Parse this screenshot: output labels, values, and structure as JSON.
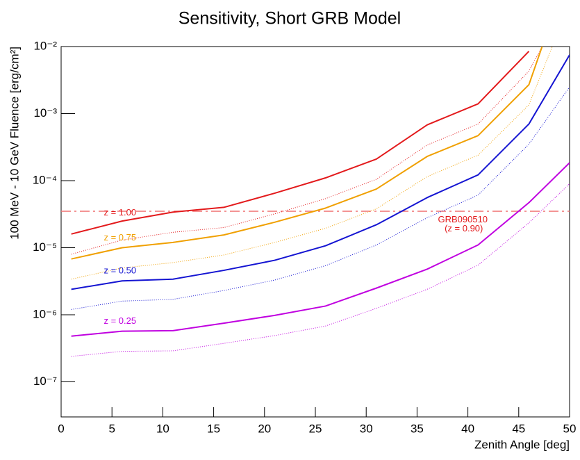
{
  "chart_data": {
    "type": "line",
    "title": "Sensitivity, Short GRB Model",
    "xlabel": "Zenith Angle [deg]",
    "ylabel": "100 MeV - 10 GeV Fluence [erg/cm²]",
    "log_y": true,
    "xlim": [
      0,
      50
    ],
    "xticks": [
      0,
      5,
      10,
      15,
      20,
      25,
      30,
      35,
      40,
      45,
      50
    ],
    "ylim": [
      3e-08,
      0.01
    ],
    "yticks": [
      {
        "value": 1e-07,
        "label": "10⁻⁷"
      },
      {
        "value": 1e-06,
        "label": "10⁻⁶"
      },
      {
        "value": 1e-05,
        "label": "10⁻⁵"
      },
      {
        "value": 0.0001,
        "label": "10⁻⁴"
      },
      {
        "value": 0.001,
        "label": "10⁻³"
      },
      {
        "value": 0.01,
        "label": "10⁻²"
      }
    ],
    "series": [
      {
        "color": "#e31a1c",
        "style": "solid",
        "x": [
          1,
          6,
          11,
          16,
          21,
          26,
          31,
          36,
          41,
          46
        ],
        "values": [
          1.6e-05,
          2.5e-05,
          3.4e-05,
          4e-05,
          6.5e-05,
          0.00011,
          0.00021,
          0.00068,
          0.0014,
          0.0085
        ]
      },
      {
        "color": "#e31a1c",
        "style": "dotted",
        "x": [
          1,
          6,
          11,
          16,
          21,
          26,
          31,
          36,
          41,
          46,
          47.3
        ],
        "values": [
          8e-06,
          1.3e-05,
          1.7e-05,
          2e-05,
          3.2e-05,
          5.4e-05,
          0.000105,
          0.00034,
          0.0007,
          0.0043,
          0.01
        ]
      },
      {
        "color": "#f0a000",
        "style": "solid",
        "x": [
          1,
          6,
          11,
          16,
          21,
          26,
          31,
          36,
          41,
          46,
          47.3
        ],
        "values": [
          6.8e-06,
          1e-05,
          1.2e-05,
          1.55e-05,
          2.4e-05,
          3.9e-05,
          7.5e-05,
          0.00023,
          0.00047,
          0.0027,
          0.01
        ]
      },
      {
        "color": "#f0a000",
        "style": "dotted",
        "x": [
          1,
          6,
          11,
          16,
          21,
          26,
          31,
          36,
          41,
          46,
          48.3
        ],
        "values": [
          3.4e-06,
          5e-06,
          6e-06,
          7.8e-06,
          1.2e-05,
          1.95e-05,
          3.8e-05,
          0.000115,
          0.00024,
          0.00135,
          0.01
        ]
      },
      {
        "color": "#1414d2",
        "style": "solid",
        "x": [
          1,
          6,
          11,
          16,
          21,
          26,
          31,
          36,
          41,
          46,
          50
        ],
        "values": [
          2.4e-06,
          3.2e-06,
          3.4e-06,
          4.6e-06,
          6.5e-06,
          1.07e-05,
          2.2e-05,
          5.6e-05,
          0.000122,
          0.0007,
          0.0075
        ]
      },
      {
        "color": "#1414d2",
        "style": "dotted",
        "x": [
          1,
          6,
          11,
          16,
          21,
          26,
          31,
          36,
          41,
          46,
          50
        ],
        "values": [
          1.2e-06,
          1.6e-06,
          1.7e-06,
          2.3e-06,
          3.3e-06,
          5.4e-06,
          1.1e-05,
          2.8e-05,
          6.1e-05,
          0.00035,
          0.0025
        ]
      },
      {
        "color": "#c000e0",
        "style": "solid",
        "x": [
          1,
          6,
          11,
          16,
          21,
          26,
          31,
          36,
          41,
          46,
          50
        ],
        "values": [
          4.8e-07,
          5.7e-07,
          5.8e-07,
          7.5e-07,
          9.8e-07,
          1.35e-06,
          2.5e-06,
          4.8e-06,
          1.1e-05,
          4.7e-05,
          0.000185
        ]
      },
      {
        "color": "#c000e0",
        "style": "dotted",
        "x": [
          1,
          6,
          11,
          16,
          21,
          26,
          31,
          36,
          41,
          46,
          50
        ],
        "values": [
          2.4e-07,
          2.85e-07,
          2.9e-07,
          3.75e-07,
          4.9e-07,
          6.8e-07,
          1.25e-06,
          2.4e-06,
          5.5e-06,
          2.35e-05,
          9e-05
        ]
      }
    ],
    "reference_line": {
      "value": 3.5e-05,
      "color": "#f07070"
    },
    "annotations": [
      {
        "text": "z = 1.00",
        "x": 4.2,
        "y": 3.3e-05,
        "color": "#e31a1c",
        "anchor": "start"
      },
      {
        "text": "z = 0.75",
        "x": 4.2,
        "y": 1.4e-05,
        "color": "#f0a000",
        "anchor": "start"
      },
      {
        "text": "z = 0.50",
        "x": 4.2,
        "y": 4.5e-06,
        "color": "#1414d2",
        "anchor": "start"
      },
      {
        "text": "z = 0.25",
        "x": 4.2,
        "y": 8e-07,
        "color": "#c000e0",
        "anchor": "start"
      },
      {
        "text": "GRB090510",
        "x": 39.5,
        "y": 2.6e-05,
        "color": "#e31a1c",
        "anchor": "middle"
      },
      {
        "text": "(z = 0.90)",
        "x": 39.6,
        "y": 1.9e-05,
        "color": "#e31a1c",
        "anchor": "middle"
      }
    ]
  }
}
